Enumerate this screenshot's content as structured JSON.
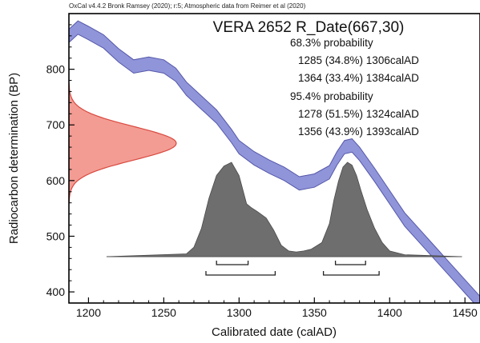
{
  "chart_data": {
    "type": "area",
    "subtitle": "OxCal v4.4.2 Bronk Ramsey (2020); r:5; Atmospheric data from Reimer et al (2020)",
    "title": "VERA 2652 R_Date(667,30)",
    "xlabel": "Calibrated date (calAD)",
    "ylabel": "Radiocarbon determination (BP)",
    "xlim": [
      1187,
      1460
    ],
    "ylim": [
      380,
      900
    ],
    "x_ticks": [
      "1200",
      "1250",
      "1300",
      "1350",
      "1400",
      "1450"
    ],
    "y_ticks": [
      "400",
      "500",
      "600",
      "700",
      "800"
    ],
    "grid": false,
    "colors": {
      "calibration_band": "#8a8fd8",
      "calibration_edge": "#5457a8",
      "measurement": "#f39c93",
      "measurement_edge": "#d9493f",
      "posterior": "#6e6e6e"
    },
    "calibration_curve": {
      "x": [
        1187,
        1193,
        1200,
        1210,
        1220,
        1230,
        1240,
        1250,
        1258,
        1265,
        1275,
        1285,
        1295,
        1300,
        1310,
        1320,
        1330,
        1340,
        1350,
        1360,
        1365,
        1370,
        1375,
        1380,
        1390,
        1400,
        1410,
        1420,
        1430,
        1440,
        1450,
        1460
      ],
      "y": [
        860,
        875,
        865,
        850,
        825,
        805,
        810,
        805,
        790,
        765,
        740,
        715,
        680,
        660,
        640,
        625,
        612,
        595,
        600,
        615,
        640,
        660,
        663,
        648,
        610,
        570,
        530,
        500,
        470,
        440,
        410,
        380
      ],
      "half_width": 12
    },
    "measurement": {
      "mean": 667,
      "sd": 30,
      "range": [
        560,
        775
      ]
    },
    "posterior": {
      "x": [
        1212,
        1265,
        1270,
        1275,
        1280,
        1285,
        1290,
        1295,
        1300,
        1305,
        1308,
        1312,
        1318,
        1323,
        1328,
        1333,
        1338,
        1343,
        1348,
        1355,
        1360,
        1363,
        1366,
        1369,
        1372,
        1375,
        1378,
        1381,
        1385,
        1390,
        1395,
        1400,
        1410,
        1448
      ],
      "density": [
        0,
        0.03,
        0.1,
        0.3,
        0.62,
        0.86,
        0.96,
        1.0,
        0.86,
        0.56,
        0.52,
        0.48,
        0.41,
        0.28,
        0.12,
        0.06,
        0.05,
        0.06,
        0.08,
        0.15,
        0.35,
        0.6,
        0.8,
        0.95,
        1.0,
        0.97,
        0.86,
        0.7,
        0.5,
        0.3,
        0.15,
        0.06,
        0.02,
        0
      ]
    },
    "ranges_68": [
      [
        1285,
        1306
      ],
      [
        1364,
        1384
      ]
    ],
    "ranges_95": [
      [
        1278,
        1324
      ],
      [
        1356,
        1393
      ]
    ],
    "probability_lines": [
      "68.3% probability",
      "1285 (34.8%) 1306calAD",
      "1364 (33.4%) 1384calAD",
      "95.4% probability",
      "1278 (51.5%) 1324calAD",
      "1356 (43.9%) 1393calAD"
    ]
  }
}
